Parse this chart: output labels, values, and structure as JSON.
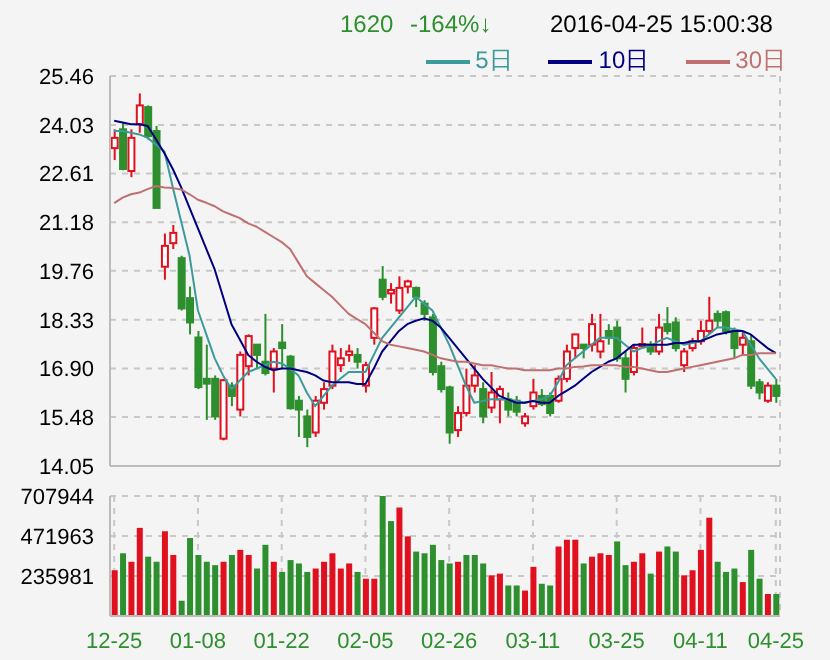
{
  "chart_data": [
    {
      "type": "candlestick",
      "annotations": [
        "1620",
        "-164%↓",
        "2016-04-25 15:00:38"
      ],
      "legend": "top right",
      "grid": true,
      "tick_labels": "y",
      "categories": [
        null,
        null,
        null,
        null,
        null,
        null,
        null,
        null,
        null,
        null,
        null,
        null,
        null,
        null,
        null,
        null,
        null,
        null,
        null,
        null,
        null,
        null,
        null,
        null,
        null,
        null,
        null,
        null,
        null,
        null,
        null,
        null,
        null,
        null,
        null,
        null,
        null,
        null,
        null,
        null,
        null,
        null,
        null,
        null,
        null,
        null,
        null,
        null,
        null,
        null,
        null,
        null,
        null,
        null,
        null,
        null,
        null,
        null,
        null,
        null,
        null,
        null,
        null,
        null,
        null,
        null,
        null,
        null,
        null,
        null,
        null,
        null,
        null,
        null,
        null,
        null,
        null,
        null,
        null,
        null
      ],
      "ylim": [
        14.05,
        25.46
      ],
      "yticks": [
        14.05,
        15.48,
        {
          "value": 16.9,
          "label": "16.90"
        },
        18.33,
        19.76,
        21.18,
        22.61,
        24.03,
        25.46
      ],
      "ohlc": [
        [
          23.35,
          23.9,
          23.0,
          23.65
        ],
        [
          23.9,
          24.1,
          22.7,
          22.74
        ],
        [
          22.68,
          23.9,
          22.5,
          23.65
        ],
        [
          24.05,
          24.95,
          23.8,
          24.6
        ],
        [
          24.55,
          24.6,
          23.6,
          23.7
        ],
        [
          23.85,
          24.0,
          21.6,
          21.6
        ],
        [
          19.88,
          20.85,
          19.5,
          20.49
        ],
        [
          20.57,
          21.1,
          20.4,
          20.87
        ],
        [
          20.13,
          20.2,
          18.6,
          18.66
        ],
        [
          18.96,
          19.3,
          17.9,
          18.25
        ],
        [
          17.81,
          18.0,
          16.3,
          16.36
        ],
        [
          16.6,
          17.6,
          15.4,
          16.46
        ],
        [
          16.6,
          16.7,
          15.4,
          15.5
        ],
        [
          14.85,
          16.6,
          14.8,
          16.56
        ],
        [
          16.4,
          16.5,
          15.8,
          16.1
        ],
        [
          15.7,
          17.4,
          15.5,
          17.3
        ],
        [
          16.97,
          17.9,
          16.7,
          17.85
        ],
        [
          17.6,
          17.6,
          16.9,
          17.3
        ],
        [
          17.1,
          18.5,
          16.7,
          16.77
        ],
        [
          16.9,
          17.5,
          16.2,
          17.4
        ],
        [
          17.66,
          18.2,
          16.9,
          17.5
        ],
        [
          17.25,
          17.3,
          15.7,
          15.74
        ],
        [
          15.96,
          16.1,
          14.9,
          15.7
        ],
        [
          15.5,
          15.7,
          14.6,
          14.9
        ],
        [
          15.03,
          16.1,
          14.9,
          15.96
        ],
        [
          15.9,
          16.5,
          15.7,
          16.3
        ],
        [
          16.4,
          17.6,
          16.3,
          17.4
        ],
        [
          17.0,
          17.5,
          16.8,
          17.2
        ],
        [
          17.3,
          17.6,
          17.1,
          17.4
        ],
        [
          17.3,
          17.5,
          16.9,
          17.1
        ],
        [
          16.4,
          17.1,
          16.2,
          17.0
        ],
        [
          17.8,
          18.7,
          17.6,
          18.66
        ],
        [
          19.5,
          19.9,
          18.9,
          19.0
        ],
        [
          19.1,
          19.4,
          18.8,
          19.2
        ],
        [
          18.6,
          19.6,
          18.5,
          19.26
        ],
        [
          19.3,
          19.5,
          19.1,
          19.45
        ],
        [
          19.26,
          19.3,
          18.7,
          19.0
        ],
        [
          18.8,
          18.9,
          18.3,
          18.5
        ],
        [
          18.4,
          18.5,
          16.7,
          16.8
        ],
        [
          16.97,
          17.1,
          16.2,
          16.3
        ],
        [
          16.35,
          16.4,
          14.7,
          15.03
        ],
        [
          15.1,
          15.8,
          14.9,
          15.6
        ],
        [
          15.6,
          16.9,
          15.5,
          16.4
        ],
        [
          16.4,
          17.0,
          16.2,
          16.7
        ],
        [
          16.3,
          16.5,
          15.3,
          15.5
        ],
        [
          15.76,
          16.8,
          15.6,
          16.2
        ],
        [
          16.0,
          16.4,
          15.3,
          16.3
        ],
        [
          16.0,
          16.2,
          15.5,
          15.7
        ],
        [
          15.96,
          16.1,
          15.5,
          15.64
        ],
        [
          15.3,
          15.6,
          15.2,
          15.5
        ],
        [
          15.8,
          16.6,
          15.7,
          16.2
        ],
        [
          16.1,
          16.3,
          15.8,
          15.86
        ],
        [
          16.1,
          16.2,
          15.5,
          15.6
        ],
        [
          15.96,
          16.7,
          15.9,
          16.6
        ],
        [
          16.6,
          17.6,
          16.5,
          17.4
        ],
        [
          17.5,
          17.9,
          17.2,
          17.9
        ],
        [
          17.6,
          17.6,
          17.2,
          17.5
        ],
        [
          17.6,
          18.5,
          17.4,
          18.2
        ],
        [
          17.4,
          18.5,
          17.2,
          17.7
        ],
        [
          18.0,
          18.2,
          17.6,
          17.8
        ],
        [
          18.1,
          18.3,
          17.1,
          17.2
        ],
        [
          17.2,
          17.4,
          16.2,
          16.6
        ],
        [
          16.8,
          17.6,
          16.7,
          17.5
        ],
        [
          17.55,
          18.1,
          17.5,
          17.62
        ],
        [
          17.6,
          17.7,
          17.3,
          17.4
        ],
        [
          17.4,
          18.5,
          17.3,
          18.1
        ],
        [
          18.2,
          18.7,
          17.9,
          18.0
        ],
        [
          18.25,
          18.4,
          17.4,
          17.5
        ],
        [
          17.0,
          17.5,
          16.8,
          17.4
        ],
        [
          17.5,
          17.8,
          17.4,
          17.7
        ],
        [
          17.7,
          18.3,
          17.6,
          18.0
        ],
        [
          18.0,
          19.0,
          17.9,
          18.3
        ],
        [
          18.5,
          18.6,
          18.1,
          18.3
        ],
        [
          18.55,
          18.6,
          17.9,
          18.0
        ],
        [
          18.0,
          18.1,
          17.2,
          17.5
        ],
        [
          17.6,
          18.0,
          17.3,
          17.8
        ],
        [
          17.7,
          17.9,
          16.3,
          16.4
        ],
        [
          16.5,
          16.6,
          16.0,
          16.2
        ],
        [
          15.96,
          16.5,
          15.9,
          16.4
        ],
        [
          16.4,
          16.6,
          15.9,
          16.1
        ]
      ],
      "colors": [
        "#e0101e",
        "#2d8f2d",
        "#e0101e",
        "#e0101e",
        "#2d8f2d",
        "#2d8f2d",
        "#e0101e",
        "#e0101e",
        "#2d8f2d",
        "#2d8f2d",
        "#2d8f2d",
        "#2d8f2d",
        "#2d8f2d",
        "#e0101e",
        "#2d8f2d",
        "#e0101e",
        "#e0101e",
        "#2d8f2d",
        "#2d8f2d",
        "#e0101e",
        "#2d8f2d",
        "#2d8f2d",
        "#2d8f2d",
        "#2d8f2d",
        "#e0101e",
        "#e0101e",
        "#e0101e",
        "#e0101e",
        "#e0101e",
        "#2d8f2d",
        "#e0101e",
        "#e0101e",
        "#2d8f2d",
        "#e0101e",
        "#e0101e",
        "#e0101e",
        "#2d8f2d",
        "#2d8f2d",
        "#2d8f2d",
        "#2d8f2d",
        "#2d8f2d",
        "#e0101e",
        "#e0101e",
        "#e0101e",
        "#2d8f2d",
        "#e0101e",
        "#e0101e",
        "#2d8f2d",
        "#2d8f2d",
        "#e0101e",
        "#e0101e",
        "#2d8f2d",
        "#2d8f2d",
        "#e0101e",
        "#e0101e",
        "#e0101e",
        "#2d8f2d",
        "#e0101e",
        "#e0101e",
        "#2d8f2d",
        "#2d8f2d",
        "#2d8f2d",
        "#e0101e",
        "#e0101e",
        "#2d8f2d",
        "#e0101e",
        "#2d8f2d",
        "#2d8f2d",
        "#e0101e",
        "#e0101e",
        "#e0101e",
        "#e0101e",
        "#2d8f2d",
        "#2d8f2d",
        "#2d8f2d",
        "#e0101e",
        "#2d8f2d",
        "#2d8f2d",
        "#e0101e",
        "#2d8f2d"
      ],
      "series": [
        {
          "type": "line",
          "name": "5日",
          "color": "#3d9a9a",
          "values": [
            23.85,
            23.85,
            23.8,
            23.75,
            23.65,
            23.45,
            23.25,
            22.2,
            21.2,
            20.2,
            18.6,
            17.9,
            17.2,
            16.7,
            16.3,
            16.55,
            16.8,
            16.9,
            17.0,
            17.1,
            17.05,
            16.9,
            16.7,
            16.2,
            15.8,
            16.1,
            16.4,
            16.6,
            16.8,
            16.8,
            16.8,
            17.3,
            17.8,
            18.1,
            18.4,
            18.7,
            19.0,
            18.8,
            18.6,
            18.1,
            17.6,
            17.0,
            16.4,
            15.9,
            15.95,
            16.0,
            16.0,
            16.0,
            15.95,
            15.9,
            15.95,
            16.0,
            16.1,
            16.5,
            17.0,
            17.2,
            17.4,
            17.6,
            17.8,
            17.8,
            17.8,
            17.6,
            17.4,
            17.5,
            17.55,
            17.7,
            17.8,
            17.7,
            17.6,
            17.65,
            17.7,
            17.9,
            18.1,
            18.1,
            18.05,
            18.0,
            17.6,
            17.2,
            16.9,
            16.6
          ]
        },
        {
          "type": "line",
          "name": "10日",
          "color": "#000080",
          "values": [
            24.15,
            24.1,
            24.05,
            24.05,
            24.0,
            23.6,
            23.2,
            22.74,
            22.2,
            21.6,
            21.0,
            20.4,
            19.8,
            19.0,
            18.2,
            17.75,
            17.3,
            17.1,
            16.95,
            16.85,
            16.9,
            16.9,
            16.85,
            16.8,
            16.7,
            16.55,
            16.5,
            16.5,
            16.5,
            16.45,
            16.45,
            16.9,
            17.4,
            17.7,
            18.0,
            18.2,
            18.3,
            18.37,
            18.3,
            18.1,
            17.8,
            17.5,
            17.2,
            16.9,
            16.6,
            16.35,
            16.1,
            16.0,
            15.9,
            15.9,
            15.95,
            15.9,
            15.9,
            16.1,
            16.25,
            16.4,
            16.6,
            16.8,
            16.95,
            17.1,
            17.2,
            17.4,
            17.6,
            17.6,
            17.6,
            17.6,
            17.6,
            17.65,
            17.65,
            17.7,
            17.7,
            17.8,
            17.9,
            17.95,
            18.0,
            18.0,
            17.9,
            17.7,
            17.5,
            17.35
          ]
        },
        {
          "type": "line",
          "name": "30日",
          "color": "#c07070",
          "values": [
            21.74,
            21.9,
            22.0,
            22.05,
            22.15,
            22.24,
            22.2,
            22.18,
            22.14,
            22.0,
            21.84,
            21.75,
            21.65,
            21.5,
            21.4,
            21.3,
            21.15,
            21.05,
            20.9,
            20.75,
            20.6,
            20.4,
            20.0,
            19.6,
            19.4,
            19.2,
            19.0,
            18.75,
            18.5,
            18.35,
            18.2,
            17.95,
            17.7,
            17.6,
            17.55,
            17.5,
            17.45,
            17.4,
            17.3,
            17.2,
            17.15,
            17.1,
            17.1,
            17.05,
            17.0,
            17.0,
            16.95,
            16.9,
            16.9,
            16.85,
            16.85,
            16.85,
            16.85,
            16.9,
            16.9,
            16.95,
            16.96,
            17.0,
            17.0,
            17.0,
            17.0,
            16.95,
            16.95,
            16.9,
            16.85,
            16.8,
            16.8,
            16.85,
            16.9,
            16.95,
            17.0,
            17.05,
            17.1,
            17.15,
            17.2,
            17.3,
            17.3,
            17.35,
            17.35,
            17.35
          ]
        }
      ]
    },
    {
      "type": "bar",
      "grid": true,
      "categories": [
        "12-25",
        null,
        null,
        null,
        null,
        null,
        null,
        null,
        null,
        null,
        "01-08",
        null,
        null,
        null,
        null,
        null,
        null,
        null,
        null,
        null,
        "01-22",
        null,
        null,
        null,
        null,
        null,
        null,
        null,
        null,
        null,
        "02-05",
        null,
        null,
        null,
        null,
        null,
        null,
        null,
        null,
        null,
        "02-26",
        null,
        null,
        null,
        null,
        null,
        null,
        null,
        null,
        null,
        "03-11",
        null,
        null,
        null,
        null,
        null,
        null,
        null,
        null,
        null,
        "03-25",
        null,
        null,
        null,
        null,
        null,
        null,
        null,
        null,
        null,
        "04-11",
        null,
        null,
        null,
        null,
        null,
        null,
        null,
        null,
        "04-25"
      ],
      "ylim": [
        0,
        707944
      ],
      "yticks": [
        {
          "value": 0,
          "label": null
        },
        235981,
        471963,
        707944
      ],
      "values": [
        270000,
        370000,
        320000,
        520000,
        350000,
        320000,
        500000,
        360000,
        90000,
        460000,
        360000,
        320000,
        300000,
        320000,
        360000,
        390000,
        360000,
        280000,
        420000,
        320000,
        260000,
        330000,
        310000,
        260000,
        280000,
        320000,
        370000,
        280000,
        310000,
        260000,
        220000,
        220000,
        707944,
        560000,
        640000,
        470000,
        380000,
        370000,
        420000,
        330000,
        310000,
        320000,
        360000,
        360000,
        310000,
        240000,
        250000,
        180000,
        180000,
        150000,
        290000,
        190000,
        180000,
        410000,
        450000,
        450000,
        310000,
        350000,
        370000,
        360000,
        440000,
        300000,
        320000,
        370000,
        250000,
        380000,
        410000,
        380000,
        240000,
        270000,
        390000,
        580000,
        320000,
        260000,
        280000,
        200000,
        390000,
        220000,
        130000,
        130000
      ],
      "colors": [
        "#e0101e",
        "#2d8f2d",
        "#e0101e",
        "#e0101e",
        "#2d8f2d",
        "#2d8f2d",
        "#e0101e",
        "#e0101e",
        "#2d8f2d",
        "#2d8f2d",
        "#2d8f2d",
        "#2d8f2d",
        "#2d8f2d",
        "#e0101e",
        "#2d8f2d",
        "#e0101e",
        "#e0101e",
        "#2d8f2d",
        "#2d8f2d",
        "#e0101e",
        "#2d8f2d",
        "#2d8f2d",
        "#2d8f2d",
        "#2d8f2d",
        "#e0101e",
        "#e0101e",
        "#e0101e",
        "#e0101e",
        "#e0101e",
        "#2d8f2d",
        "#e0101e",
        "#e0101e",
        "#2d8f2d",
        "#2d8f2d",
        "#e0101e",
        "#e0101e",
        "#2d8f2d",
        "#2d8f2d",
        "#2d8f2d",
        "#2d8f2d",
        "#2d8f2d",
        "#e0101e",
        "#2d8f2d",
        "#2d8f2d",
        "#2d8f2d",
        "#e0101e",
        "#e0101e",
        "#2d8f2d",
        "#2d8f2d",
        "#e0101e",
        "#e0101e",
        "#2d8f2d",
        "#2d8f2d",
        "#e0101e",
        "#e0101e",
        "#e0101e",
        "#2d8f2d",
        "#e0101e",
        "#e0101e",
        "#e0101e",
        "#2d8f2d",
        "#2d8f2d",
        "#e0101e",
        "#e0101e",
        "#2d8f2d",
        "#e0101e",
        "#2d8f2d",
        "#2d8f2d",
        "#e0101e",
        "#e0101e",
        "#e0101e",
        "#e0101e",
        "#2d8f2d",
        "#2d8f2d",
        "#2d8f2d",
        "#e0101e",
        "#2d8f2d",
        "#2d8f2d",
        "#e0101e",
        "#2d8f2d"
      ]
    }
  ]
}
